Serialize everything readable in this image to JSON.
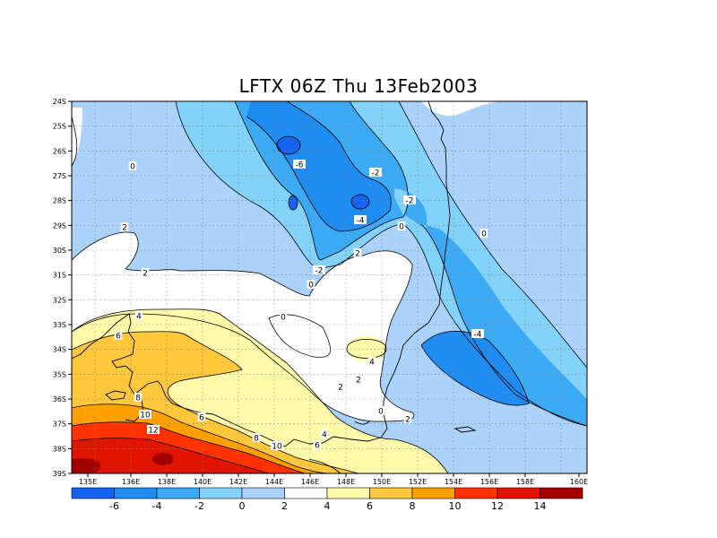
{
  "title": "LFTX 06Z Thu 13Feb2003",
  "map": {
    "lat_labels": [
      "24S",
      "25S",
      "26S",
      "27S",
      "28S",
      "29S",
      "30S",
      "31S",
      "32S",
      "33S",
      "34S",
      "35S",
      "36S",
      "37S",
      "38S",
      "39S"
    ],
    "lon_labels": [
      "135E",
      "136E",
      "138E",
      "140E",
      "142E",
      "144E",
      "146E",
      "148E",
      "150E",
      "152E",
      "154E",
      "156E",
      "158E",
      "160E"
    ],
    "contour_labels": [
      {
        "text": "0"
      },
      {
        "text": "-6"
      },
      {
        "text": "-2"
      },
      {
        "text": "-2"
      },
      {
        "text": "-4"
      },
      {
        "text": "0"
      },
      {
        "text": "-2"
      },
      {
        "text": "2"
      },
      {
        "text": "0"
      },
      {
        "text": "2"
      },
      {
        "text": "2"
      },
      {
        "text": "0"
      },
      {
        "text": "4"
      },
      {
        "text": "6"
      },
      {
        "text": "8"
      },
      {
        "text": "10"
      },
      {
        "text": "12"
      },
      {
        "text": "6"
      },
      {
        "text": "8"
      },
      {
        "text": "10"
      },
      {
        "text": "6"
      },
      {
        "text": "4"
      },
      {
        "text": "4"
      },
      {
        "text": "2"
      },
      {
        "text": "0"
      },
      {
        "text": "2"
      },
      {
        "text": "-4"
      },
      {
        "text": "0"
      },
      {
        "text": "2"
      }
    ]
  },
  "colorbar": {
    "labels": [
      "-6",
      "-4",
      "-2",
      "0",
      "2",
      "4",
      "6",
      "8",
      "10",
      "12",
      "14"
    ],
    "colors": [
      "#1464f0",
      "#1e8cf0",
      "#3caaf5",
      "#82d2fa",
      "#aad2fa",
      "#ffffff",
      "#fffaaa",
      "#ffc83c",
      "#ffa000",
      "#ff3200",
      "#e11400",
      "#a50000"
    ]
  },
  "colors": {
    "neg6": "#1464f0",
    "neg4": "#1e8cf0",
    "neg2": "#3caaf5",
    "zero": "#82d2fa",
    "pos0": "#aad2fa",
    "pos2": "#ffffff",
    "pos4": "#fffaaa",
    "pos6": "#ffc83c",
    "pos8": "#ffa000",
    "pos10": "#ff3200",
    "pos12": "#e11400",
    "pos14": "#a50000"
  }
}
